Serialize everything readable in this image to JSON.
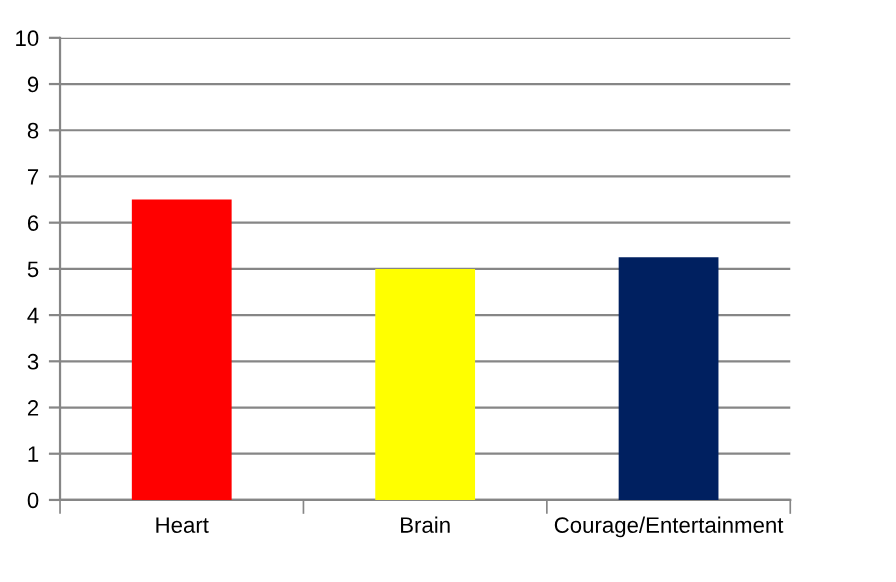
{
  "chart_data": {
    "type": "bar",
    "categories": [
      "Heart",
      "Brain",
      "Courage/Entertainment"
    ],
    "values": [
      6.5,
      5,
      5.25
    ],
    "colors": [
      "#ff0000",
      "#ffff00",
      "#002060"
    ],
    "ylim": [
      0,
      10
    ],
    "yticks": [
      0,
      1,
      2,
      3,
      4,
      5,
      6,
      7,
      8,
      9,
      10
    ],
    "grid": "y",
    "legend": false
  }
}
